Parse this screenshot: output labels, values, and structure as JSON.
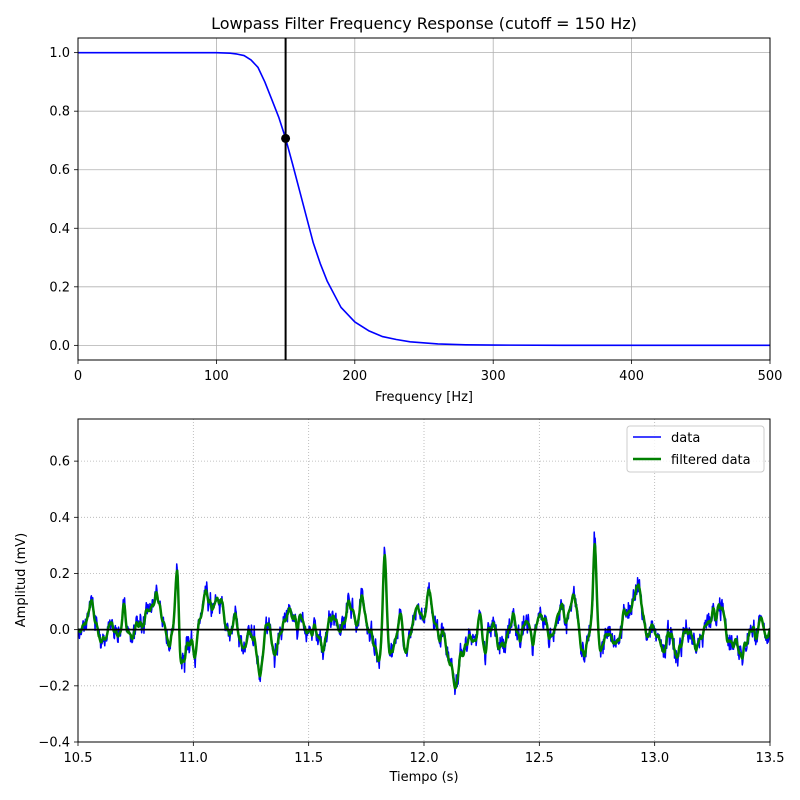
{
  "chart_data": [
    {
      "type": "line",
      "title": "Lowpass Filter Frequency Response (cutoff = 150 Hz)",
      "xlabel": "Frequency [Hz]",
      "ylabel": "",
      "xlim": [
        0,
        500
      ],
      "ylim": [
        -0.05,
        1.05
      ],
      "xticks": [
        "0",
        "100",
        "200",
        "300",
        "400",
        "500"
      ],
      "yticks": [
        "0.0",
        "0.2",
        "0.4",
        "0.6",
        "0.8",
        "1.0"
      ],
      "grid": true,
      "series": [
        {
          "color": "#0000ff",
          "x": [
            0,
            20,
            40,
            60,
            80,
            100,
            110,
            115,
            120,
            125,
            130,
            135,
            140,
            145,
            150,
            155,
            160,
            165,
            170,
            175,
            180,
            190,
            200,
            210,
            220,
            230,
            240,
            260,
            280,
            300,
            350,
            400,
            450,
            500
          ],
          "values": [
            1.0,
            1.0,
            1.0,
            1.0,
            1.0,
            1.0,
            0.998,
            0.995,
            0.99,
            0.975,
            0.95,
            0.9,
            0.84,
            0.78,
            0.707,
            0.62,
            0.53,
            0.44,
            0.35,
            0.28,
            0.22,
            0.13,
            0.08,
            0.05,
            0.03,
            0.02,
            0.012,
            0.005,
            0.002,
            0.001,
            0.0,
            0.0,
            0.0,
            0.0
          ]
        }
      ],
      "vline_x": 150,
      "vline_color": "#000000",
      "marker": {
        "x": 150,
        "y": 0.707,
        "color": "#000000"
      }
    },
    {
      "type": "line",
      "title": "",
      "xlabel": "Tiempo (s)",
      "ylabel": "Amplitud (mV)",
      "xlim": [
        10.5,
        13.5
      ],
      "ylim": [
        -0.4,
        0.75
      ],
      "xticks": [
        "10.5",
        "11.0",
        "11.5",
        "12.0",
        "12.5",
        "13.0",
        "13.5"
      ],
      "yticks": [
        "−0.4",
        "−0.2",
        "0.0",
        "0.2",
        "0.4",
        "0.6"
      ],
      "grid": "dotted",
      "hline_y": 0.0,
      "legend_position": "top-right",
      "series": [
        {
          "name": "data",
          "color": "#0000ff"
        },
        {
          "name": "filtered data",
          "color": "#008000"
        }
      ],
      "ecg_beats_t": [
        10.93,
        11.83,
        12.74
      ],
      "ecg_peak_mV": [
        0.32,
        0.3,
        0.31
      ]
    }
  ]
}
